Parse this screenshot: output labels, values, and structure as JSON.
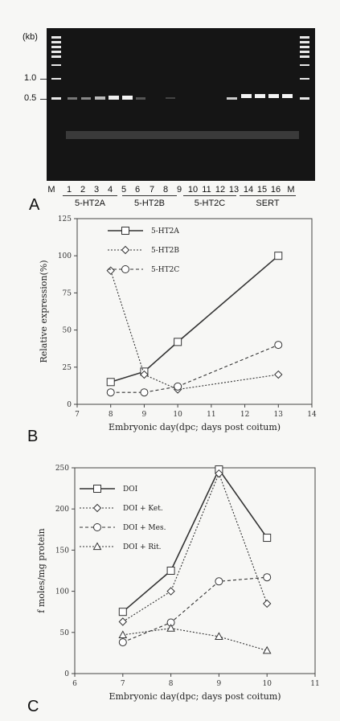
{
  "panels": {
    "a": "A",
    "b": "B",
    "c": "C"
  },
  "gel": {
    "kb_title": "(kb)",
    "kb_marks": [
      {
        "label": "1.0"
      },
      {
        "label": "0.5"
      }
    ],
    "lanes": [
      "M",
      "1",
      "2",
      "3",
      "4",
      "5",
      "6",
      "7",
      "8",
      "9",
      "10",
      "11",
      "12",
      "13",
      "14",
      "15",
      "16",
      "M"
    ],
    "groups": [
      "5-HT2A",
      "5-HT2B",
      "5-HT2C",
      "SERT"
    ]
  },
  "chart_data": [
    {
      "type": "line",
      "xlabel": "Embryonic day(dpc; days post coitum)",
      "ylabel": "Relative expression(%)",
      "xlim": [
        7,
        14
      ],
      "ylim": [
        0,
        125
      ],
      "xticks": [
        "7",
        "8",
        "9",
        "10",
        "11",
        "12",
        "13",
        "14"
      ],
      "yticks": [
        "0",
        "25",
        "50",
        "75",
        "100",
        "125"
      ],
      "x": [
        8,
        9,
        10,
        13
      ],
      "legend": "top-left",
      "series": [
        {
          "name": "5-HT2A",
          "marker": "square",
          "dash": "solid",
          "values": [
            15,
            22,
            42,
            100
          ]
        },
        {
          "name": "5-HT2B",
          "marker": "diamond",
          "dash": "dotted",
          "values": [
            90,
            20,
            10,
            20
          ]
        },
        {
          "name": "5-HT2C",
          "marker": "circle",
          "dash": "dashed",
          "values": [
            8,
            8,
            12,
            40
          ]
        }
      ]
    },
    {
      "type": "line",
      "xlabel": "Embryonic day(dpc; days post coitum)",
      "ylabel": "f moles/mg protein",
      "xlim": [
        6,
        11
      ],
      "ylim": [
        0,
        250
      ],
      "xticks": [
        "6",
        "7",
        "8",
        "9",
        "10",
        "11"
      ],
      "yticks": [
        "0",
        "50",
        "100",
        "150",
        "200",
        "250"
      ],
      "x": [
        7,
        8,
        9,
        10
      ],
      "legend": "top-left",
      "series": [
        {
          "name": "DOI",
          "marker": "square",
          "dash": "solid",
          "values": [
            75,
            125,
            248,
            165
          ]
        },
        {
          "name": "DOI + Ket.",
          "marker": "diamond",
          "dash": "dotted",
          "values": [
            63,
            100,
            243,
            85
          ]
        },
        {
          "name": "DOI + Mes.",
          "marker": "circle",
          "dash": "dashed",
          "values": [
            38,
            62,
            112,
            117
          ]
        },
        {
          "name": "DOI + Rit.",
          "marker": "triangle",
          "dash": "dotted",
          "values": [
            47,
            55,
            45,
            28
          ]
        }
      ]
    }
  ]
}
